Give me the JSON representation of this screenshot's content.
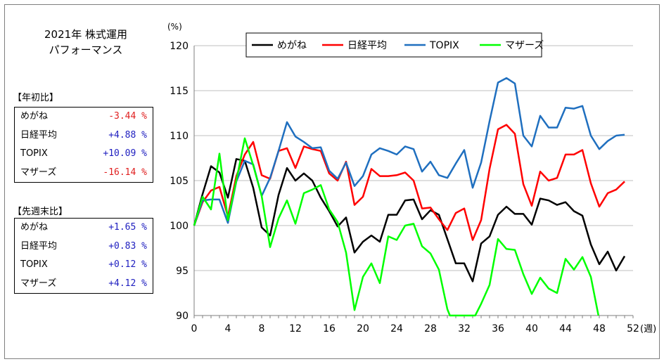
{
  "title_line1": "2021年 株式運用",
  "title_line2": "パフォーマンス",
  "ytd": {
    "label": "【年初比】",
    "rows": [
      {
        "name": "めがね",
        "value": "-3.44 %"
      },
      {
        "name": "日経平均",
        "value": "+4.88 %"
      },
      {
        "name": "TOPIX",
        "value": "+10.09 %"
      },
      {
        "name": "マザーズ",
        "value": "-16.14 %"
      }
    ]
  },
  "wow": {
    "label": "【先週末比】",
    "rows": [
      {
        "name": "めがね",
        "value": "+1.65 %"
      },
      {
        "name": "日経平均",
        "value": "+0.83 %"
      },
      {
        "name": "TOPIX",
        "value": "+0.12 %"
      },
      {
        "name": "マザーズ",
        "value": "+4.12 %"
      }
    ]
  },
  "colors": {
    "positive": "#2020c0",
    "negative": "#e02020",
    "grid": "#bfbfbf",
    "axis": "#7f7f7f"
  },
  "chart_data": {
    "type": "line",
    "ylabel": "(%)",
    "xlabel": "(週)",
    "xlim": [
      0,
      52
    ],
    "ylim": [
      90,
      120
    ],
    "xticks": [
      0,
      4,
      8,
      12,
      16,
      20,
      24,
      28,
      32,
      36,
      40,
      44,
      48,
      52
    ],
    "yticks": [
      90,
      95,
      100,
      105,
      110,
      115,
      120
    ],
    "legend_position": "top",
    "series": [
      {
        "name": "めがね",
        "color": "#000000",
        "x": [
          0,
          1,
          2,
          3,
          4,
          5,
          6,
          7,
          8,
          9,
          10,
          11,
          12,
          13,
          14,
          15,
          16,
          17,
          18,
          19,
          20,
          21,
          22,
          23,
          24,
          25,
          26,
          27,
          28,
          29,
          30,
          31,
          32,
          33,
          34,
          35,
          36,
          37,
          38,
          39,
          40,
          41,
          42,
          43,
          44,
          45,
          46,
          47,
          48,
          49,
          50,
          51
        ],
        "values": [
          100,
          103.5,
          106.6,
          105.9,
          103.1,
          107.4,
          107.2,
          104.2,
          99.8,
          98.9,
          103.4,
          106.4,
          105,
          105.8,
          105,
          103.1,
          101.6,
          99.9,
          100.9,
          97,
          98.2,
          98.9,
          98.2,
          101.2,
          101.2,
          102.8,
          102.9,
          100.7,
          101.7,
          101.2,
          98.5,
          95.8,
          95.8,
          93.8,
          98,
          98.8,
          101.2,
          102.1,
          101.3,
          101.3,
          100.1,
          103,
          102.8,
          102.3,
          102.6,
          101.6,
          101.1,
          97.9,
          95.7,
          97.1,
          95,
          96.6
        ]
      },
      {
        "name": "日経平均",
        "color": "#ff0000",
        "x": [
          0,
          1,
          2,
          3,
          4,
          5,
          6,
          7,
          8,
          9,
          10,
          11,
          12,
          13,
          14,
          15,
          16,
          17,
          18,
          19,
          20,
          21,
          22,
          23,
          24,
          25,
          26,
          27,
          28,
          29,
          30,
          31,
          32,
          33,
          34,
          35,
          36,
          37,
          38,
          39,
          40,
          41,
          42,
          43,
          44,
          45,
          46,
          47,
          48,
          49,
          50,
          51
        ],
        "values": [
          100,
          102.6,
          103.9,
          104.3,
          101,
          105.5,
          107.9,
          109.3,
          105.6,
          105.2,
          108.3,
          108.6,
          106.4,
          108.8,
          108.5,
          108.3,
          105.8,
          105,
          107.1,
          102.3,
          103.2,
          106.3,
          105.5,
          105.5,
          105.6,
          105.9,
          105,
          101.9,
          102,
          100.7,
          99.5,
          101.4,
          101.9,
          98.4,
          100.6,
          106.3,
          110.7,
          111.2,
          110.2,
          104.6,
          102.2,
          106,
          105,
          105.3,
          107.9,
          107.9,
          108.4,
          104.7,
          102.1,
          103.6,
          104,
          104.9
        ]
      },
      {
        "name": "TOPIX",
        "color": "#1f6fbf",
        "x": [
          0,
          1,
          2,
          3,
          4,
          5,
          6,
          7,
          8,
          9,
          10,
          11,
          12,
          13,
          14,
          15,
          16,
          17,
          18,
          19,
          20,
          21,
          22,
          23,
          24,
          25,
          26,
          27,
          28,
          29,
          30,
          31,
          32,
          33,
          34,
          35,
          36,
          37,
          38,
          39,
          40,
          41,
          42,
          43,
          44,
          45,
          46,
          47,
          48,
          49,
          50,
          51
        ],
        "values": [
          100,
          102.8,
          102.9,
          102.9,
          100.3,
          104.9,
          107.2,
          106.8,
          103.3,
          105.3,
          108.3,
          111.5,
          109.9,
          109.3,
          108.6,
          108.7,
          106.1,
          105.2,
          107,
          104.4,
          105.5,
          107.9,
          108.6,
          108.3,
          107.9,
          108.8,
          108.5,
          106,
          107.1,
          105.6,
          105.3,
          106.9,
          108.4,
          104.2,
          107,
          111.6,
          115.9,
          116.4,
          115.8,
          110,
          108.8,
          112.2,
          110.9,
          110.9,
          113.1,
          113,
          113.3,
          110,
          108.5,
          109.4,
          110,
          110.1
        ]
      },
      {
        "name": "マザーズ",
        "color": "#00ff00",
        "x": [
          0,
          1,
          2,
          3,
          4,
          5,
          6,
          7,
          8,
          9,
          10,
          11,
          12,
          13,
          14,
          15,
          16,
          17,
          18,
          19,
          20,
          21,
          22,
          23,
          24,
          25,
          26,
          27,
          28,
          29,
          30,
          30.3,
          33.3,
          34,
          35,
          36,
          37,
          38,
          39,
          40,
          41,
          42,
          43,
          44,
          45,
          46,
          47,
          47.9
        ],
        "values": [
          100,
          103.2,
          101.8,
          108,
          100.6,
          105,
          109.7,
          106.7,
          103.3,
          97.6,
          100.8,
          102.8,
          100.2,
          103.6,
          104,
          104.5,
          101.8,
          100.4,
          97,
          90.6,
          94.3,
          95.8,
          93.6,
          98.8,
          98.4,
          100,
          100.2,
          97.7,
          96.9,
          95.1,
          90.7,
          90,
          90,
          91.3,
          93.4,
          98.5,
          97.4,
          97.3,
          94.6,
          92.4,
          94.2,
          93,
          92.5,
          96.3,
          95.1,
          96.5,
          94.3,
          90
        ]
      }
    ]
  }
}
